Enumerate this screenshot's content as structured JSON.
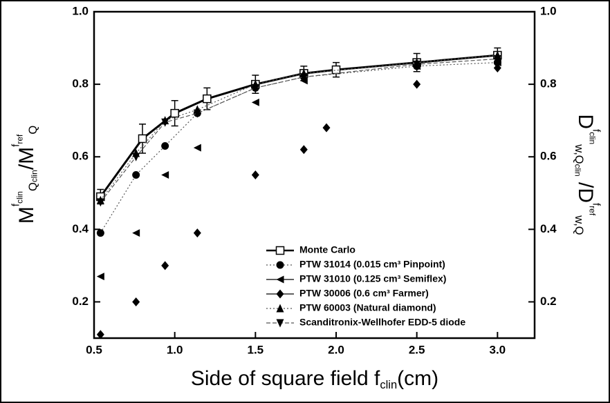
{
  "chart_data": {
    "type": "scatter",
    "x_label": [
      {
        "text": "Side of square field f",
        "role": "base"
      },
      {
        "text": "clin",
        "role": "sub"
      },
      {
        "text": "(cm)",
        "role": "base"
      }
    ],
    "y_label": [
      {
        "text": "M",
        "role": "base"
      },
      {
        "text": "f",
        "role": "sup"
      },
      {
        "text": "clin",
        "role": "supsub"
      },
      {
        "text": "Q",
        "role": "sub"
      },
      {
        "text": "clin",
        "role": "subsub"
      },
      {
        "text": "/M",
        "role": "base"
      },
      {
        "text": "f",
        "role": "sup"
      },
      {
        "text": "ref",
        "role": "supsub"
      },
      {
        "text": "Q",
        "role": "sub"
      }
    ],
    "y2_label": [
      {
        "text": "D",
        "role": "base"
      },
      {
        "text": "f",
        "role": "sup"
      },
      {
        "text": "clin",
        "role": "supsub"
      },
      {
        "text": "w,Q",
        "role": "sub"
      },
      {
        "text": "clin",
        "role": "subsub"
      },
      {
        "text": " /D",
        "role": "base"
      },
      {
        "text": "f",
        "role": "sup"
      },
      {
        "text": "ref",
        "role": "supsub"
      },
      {
        "text": "w,Q",
        "role": "sub"
      }
    ],
    "xlim": [
      0.5,
      3.23
    ],
    "ylim": [
      0.1,
      1.0
    ],
    "y2lim": [
      0.1,
      1.0
    ],
    "xticks": [
      {
        "value": 0.5,
        "label": "0.5"
      },
      {
        "value": 1,
        "label": "1.0"
      },
      {
        "value": 1.5,
        "label": "1.5"
      },
      {
        "value": 2,
        "label": "2.0"
      },
      {
        "value": 2.5,
        "label": "2.5"
      },
      {
        "value": 3,
        "label": "3.0"
      }
    ],
    "yticks": [
      0.2,
      0.4,
      0.6,
      0.8,
      {
        "value": 1,
        "label": "1.0"
      }
    ],
    "y2ticks": [
      0.2,
      0.4,
      0.6,
      0.8,
      {
        "value": 1,
        "label": "1.0"
      }
    ],
    "legend": "lower right",
    "series": [
      {
        "name": "Monte Carlo",
        "color": "#000000",
        "marker": "square-open",
        "line": "solid",
        "x": [
          0.54,
          0.8,
          1.0,
          1.2,
          1.5,
          1.8,
          2.0,
          2.5,
          3.0
        ],
        "values": [
          0.49,
          0.65,
          0.72,
          0.76,
          0.8,
          0.83,
          0.84,
          0.86,
          0.88
        ],
        "errors": [
          0.02,
          0.04,
          0.035,
          0.03,
          0.025,
          0.02,
          0.02,
          0.025,
          0.02
        ]
      },
      {
        "name": "PTW 31014 (0.015 cm³ Pinpoint)",
        "color": "#000000",
        "marker": "circle",
        "line": "dotted",
        "x": [
          0.54,
          0.76,
          0.94,
          1.14,
          1.5,
          1.8,
          2.5,
          3.0
        ],
        "values": [
          0.39,
          0.55,
          0.63,
          0.72,
          0.79,
          0.82,
          0.85,
          0.86
        ]
      },
      {
        "name": "PTW 31010 (0.125 cm³ Semiflex)",
        "color": "#000000",
        "marker": "triangle-left",
        "line": null,
        "x": [
          0.54,
          0.76,
          0.94,
          1.14,
          1.5,
          1.8,
          2.5,
          3.0
        ],
        "values": [
          0.27,
          0.39,
          0.55,
          0.625,
          0.75,
          0.81,
          0.85,
          0.86
        ]
      },
      {
        "name": "PTW 30006 (0.6 cm³ Farmer)",
        "color": "#000000",
        "marker": "diamond",
        "line": null,
        "x": [
          0.54,
          0.76,
          0.94,
          1.14,
          1.5,
          1.8,
          1.94,
          2.5,
          3.0
        ],
        "values": [
          0.11,
          0.2,
          0.3,
          0.39,
          0.55,
          0.62,
          0.68,
          0.8,
          0.845
        ]
      },
      {
        "name": "PTW 60003 (Natural diamond)",
        "color": "#000000",
        "marker": "triangle-up",
        "line": "dotted",
        "x": [
          0.54,
          0.76,
          0.94,
          1.14,
          1.5,
          1.8,
          2.5,
          3.0
        ],
        "values": [
          0.48,
          0.61,
          0.7,
          0.73,
          0.8,
          0.83,
          0.86,
          0.88
        ]
      },
      {
        "name": "Scanditronix-Wellhofer EDD-5 diode",
        "color": "#000000",
        "marker": "triangle-down",
        "line": "dashed",
        "x": [
          0.54,
          0.76,
          0.94,
          1.14,
          1.5,
          1.8,
          2.5,
          3.0
        ],
        "values": [
          0.475,
          0.6,
          0.695,
          0.72,
          0.79,
          0.82,
          0.855,
          0.87
        ]
      }
    ]
  }
}
